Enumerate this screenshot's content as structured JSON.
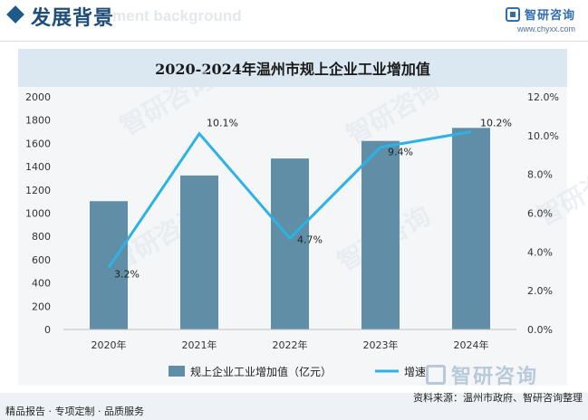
{
  "header": {
    "title": "发展背景",
    "ghost_text": "ment background",
    "brand_name": "智研咨询",
    "brand_url": "www.chyxx.com"
  },
  "chart_data": {
    "type": "bar",
    "title": "2020-2024年温州市规上企业工业增加值",
    "categories": [
      "2020年",
      "2021年",
      "2022年",
      "2023年",
      "2024年"
    ],
    "series": [
      {
        "name": "规上企业工业增加值（亿元）",
        "type": "bar",
        "axis": "left",
        "values": [
          1103,
          1324,
          1470,
          1621,
          1733
        ],
        "color": "#5f8ea6"
      },
      {
        "name": "增速",
        "type": "line",
        "axis": "right",
        "values": [
          3.2,
          10.1,
          4.7,
          9.4,
          10.2
        ],
        "color": "#2eb2e6",
        "labels": [
          "3.2%",
          "10.1%",
          "4.7%",
          "9.4%",
          "10.2%"
        ]
      }
    ],
    "y_left": {
      "min": 0,
      "max": 2000,
      "step": 200,
      "ticks": [
        "0",
        "200",
        "400",
        "600",
        "800",
        "1000",
        "1200",
        "1400",
        "1600",
        "1800",
        "2000"
      ]
    },
    "y_right": {
      "min": 0,
      "max": 12,
      "step": 2,
      "ticks": [
        "0.0%",
        "2.0%",
        "4.0%",
        "6.0%",
        "8.0%",
        "10.0%",
        "12.0%"
      ]
    },
    "legend_position": "bottom"
  },
  "watermark": {
    "text": "智研咨询"
  },
  "footer": {
    "left_text": "精品报告 · 专项定制 · 品质服务",
    "source_text": "资料来源：温州市政府、智研咨询整理"
  }
}
